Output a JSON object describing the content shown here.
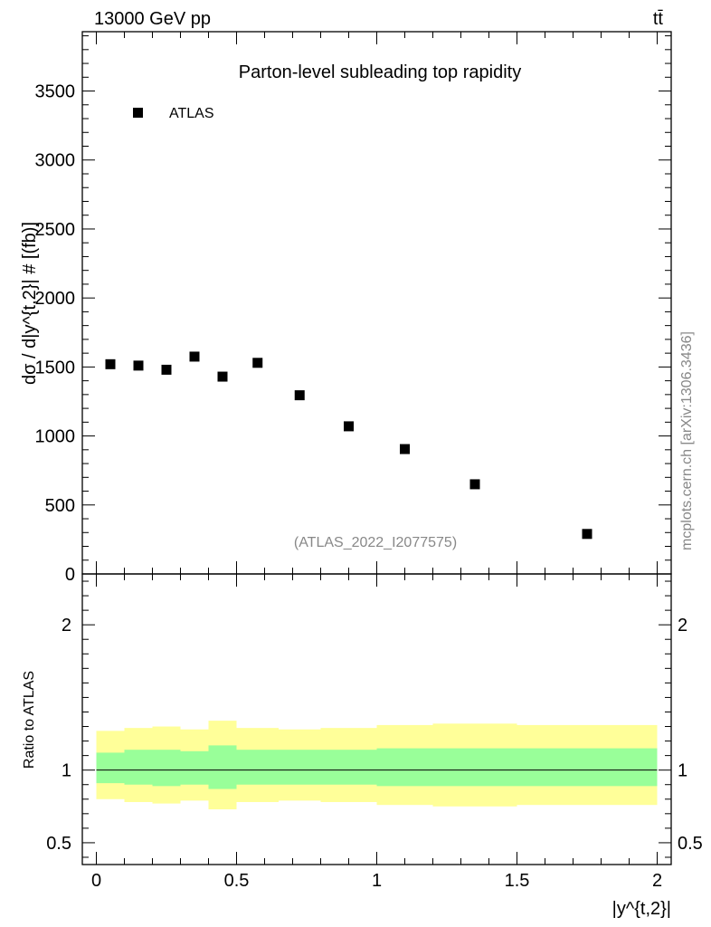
{
  "header": {
    "energy_label": "13000 GeV pp",
    "process_label": "tt̄"
  },
  "colors": {
    "band_inner": "#99ff99",
    "band_outer": "#ffff99",
    "marker": "#000000",
    "watermark": "#888888"
  },
  "chart_data": {
    "type": "scatter",
    "title": "Parton-level subleading top rapidity",
    "ylabel": "dσ / d|y^{t,2}|  # [(fb)]",
    "xlabel": "|y^{t,2}|",
    "analysis_id": "(ATLAS_2022_I2077575)",
    "watermark": "mcplots.cern.ch [arXiv:1306.3436]",
    "legend": {
      "entries": [
        "ATLAS"
      ],
      "position": "top-left"
    },
    "xlim": [
      -0.05,
      2.05
    ],
    "ylim": [
      0,
      3930
    ],
    "x_ticks": [
      {
        "value": 0,
        "label": "0"
      },
      {
        "value": 0.5,
        "label": "0.5"
      },
      {
        "value": 1,
        "label": "1"
      },
      {
        "value": 1.5,
        "label": "1.5"
      },
      {
        "value": 2,
        "label": "2"
      }
    ],
    "y_ticks": [
      {
        "value": 0,
        "label": "0"
      },
      {
        "value": 500,
        "label": "500"
      },
      {
        "value": 1000,
        "label": "1000"
      },
      {
        "value": 1500,
        "label": "1500"
      },
      {
        "value": 2000,
        "label": "2000"
      },
      {
        "value": 2500,
        "label": "2500"
      },
      {
        "value": 3000,
        "label": "3000"
      },
      {
        "value": 3500,
        "label": "3500"
      }
    ],
    "series": [
      {
        "name": "ATLAS",
        "x": [
          0.05,
          0.15,
          0.25,
          0.35,
          0.45,
          0.575,
          0.725,
          0.9,
          1.1,
          1.35,
          1.75
        ],
        "y": [
          1520,
          1510,
          1480,
          1575,
          1430,
          1530,
          1295,
          1070,
          905,
          650,
          290
        ]
      }
    ],
    "ratio": {
      "ylabel": "Ratio to ATLAS",
      "ylim": [
        0.35,
        2.35
      ],
      "y_ticks": [
        {
          "value": 0.5,
          "label": "0.5"
        },
        {
          "value": 1,
          "label": "1"
        },
        {
          "value": 2,
          "label": "2"
        }
      ],
      "reference_line": 1,
      "bins": [
        {
          "x0": 0.0,
          "x1": 0.1,
          "inner": [
            0.91,
            1.12
          ],
          "outer": [
            0.8,
            1.27
          ]
        },
        {
          "x0": 0.1,
          "x1": 0.2,
          "inner": [
            0.9,
            1.14
          ],
          "outer": [
            0.78,
            1.29
          ]
        },
        {
          "x0": 0.2,
          "x1": 0.3,
          "inner": [
            0.89,
            1.14
          ],
          "outer": [
            0.77,
            1.3
          ]
        },
        {
          "x0": 0.3,
          "x1": 0.4,
          "inner": [
            0.9,
            1.13
          ],
          "outer": [
            0.79,
            1.28
          ]
        },
        {
          "x0": 0.4,
          "x1": 0.5,
          "inner": [
            0.87,
            1.17
          ],
          "outer": [
            0.73,
            1.34
          ]
        },
        {
          "x0": 0.5,
          "x1": 0.65,
          "inner": [
            0.9,
            1.14
          ],
          "outer": [
            0.78,
            1.29
          ]
        },
        {
          "x0": 0.65,
          "x1": 0.8,
          "inner": [
            0.9,
            1.14
          ],
          "outer": [
            0.79,
            1.28
          ]
        },
        {
          "x0": 0.8,
          "x1": 1.0,
          "inner": [
            0.9,
            1.14
          ],
          "outer": [
            0.78,
            1.29
          ]
        },
        {
          "x0": 1.0,
          "x1": 1.2,
          "inner": [
            0.89,
            1.15
          ],
          "outer": [
            0.76,
            1.31
          ]
        },
        {
          "x0": 1.2,
          "x1": 1.5,
          "inner": [
            0.89,
            1.15
          ],
          "outer": [
            0.75,
            1.32
          ]
        },
        {
          "x0": 1.5,
          "x1": 2.0,
          "inner": [
            0.89,
            1.15
          ],
          "outer": [
            0.76,
            1.31
          ]
        }
      ]
    }
  }
}
